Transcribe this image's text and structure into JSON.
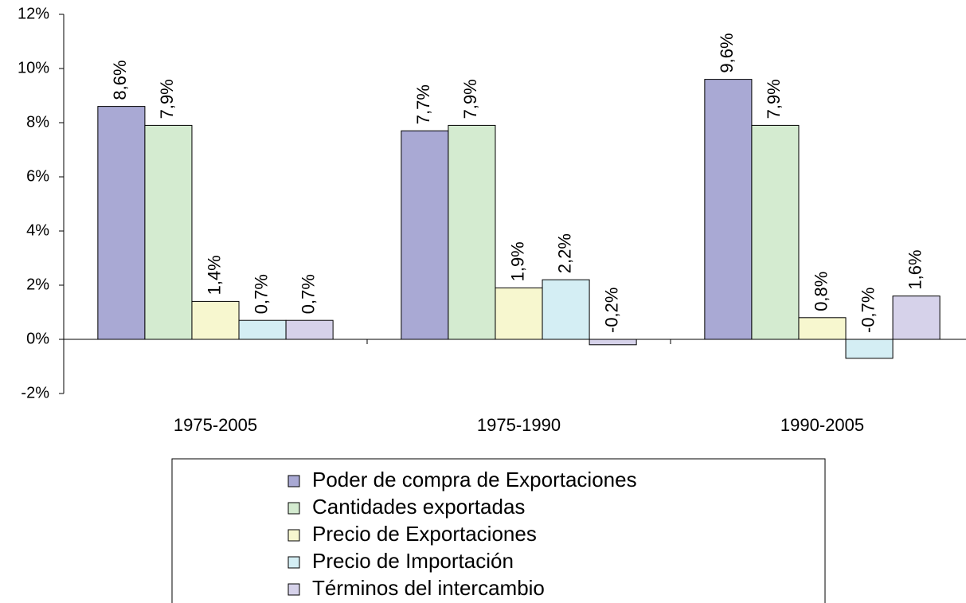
{
  "chart_data": {
    "type": "bar",
    "categories": [
      "1975-2005",
      "1975-1990",
      "1990-2005"
    ],
    "series": [
      {
        "name": "Poder de compra de Exportaciones",
        "color": "#a9a9d4",
        "values": [
          8.6,
          7.7,
          9.6
        ],
        "value_labels": [
          "8,6%",
          "7,7%",
          "9,6%"
        ]
      },
      {
        "name": "Cantidades exportadas",
        "color": "#d4ebd0",
        "values": [
          7.9,
          7.9,
          7.9
        ],
        "value_labels": [
          "7,9%",
          "7,9%",
          "7,9%"
        ]
      },
      {
        "name": "Precio de Exportaciones",
        "color": "#f7f7cf",
        "values": [
          1.4,
          1.9,
          0.8
        ],
        "value_labels": [
          "1,4%",
          "1,9%",
          "0,8%"
        ]
      },
      {
        "name": "Precio de Importación",
        "color": "#d4eef4",
        "values": [
          0.7,
          2.2,
          -0.7
        ],
        "value_labels": [
          "0,7%",
          "2,2%",
          "-0,7%"
        ]
      },
      {
        "name": "Términos del intercambio",
        "color": "#d6d2ea",
        "values": [
          0.7,
          -0.2,
          1.6
        ],
        "value_labels": [
          "0,7%",
          "-0,2%",
          "1,6%"
        ]
      }
    ],
    "ylim": [
      -2,
      12
    ],
    "yticks": [
      {
        "value": -2,
        "label": "-2%"
      },
      {
        "value": 0,
        "label": "0%"
      },
      {
        "value": 2,
        "label": "2%"
      },
      {
        "value": 4,
        "label": "4%"
      },
      {
        "value": 6,
        "label": "6%"
      },
      {
        "value": 8,
        "label": "8%"
      },
      {
        "value": 10,
        "label": "10%"
      },
      {
        "value": 12,
        "label": "12%"
      }
    ],
    "grid": false,
    "legend": "bottom"
  }
}
